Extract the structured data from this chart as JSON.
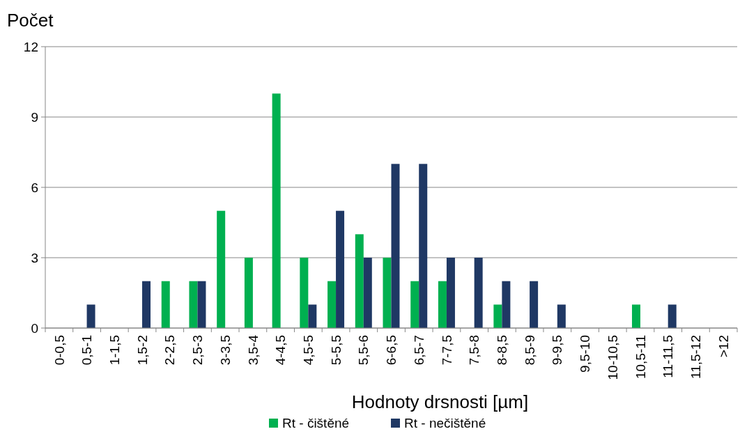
{
  "chart_data": {
    "type": "bar",
    "ylabel": "Počet",
    "xlabel": "Hodnoty drsnosti [µm]",
    "categories": [
      "0-0,5",
      "0,5-1",
      "1-1,5",
      "1,5-2",
      "2-2,5",
      "2,5-3",
      "3-3,5",
      "3,5-4",
      "4-4,5",
      "4,5-5",
      "5-5,5",
      "5,5-6",
      "6-6,5",
      "6,5-7",
      "7-7,5",
      "7,5-8",
      "8-8,5",
      "8,5-9",
      "9-9,5",
      "9,5-10",
      "10-10,5",
      "10,5-11",
      "11-11,5",
      "11,5-12",
      ">12"
    ],
    "series": [
      {
        "name": "Rt - čištěné",
        "color": "#00b050",
        "values": [
          0,
          0,
          0,
          0,
          2,
          2,
          5,
          3,
          10,
          3,
          2,
          4,
          3,
          2,
          2,
          0,
          1,
          0,
          0,
          0,
          0,
          1,
          0,
          0,
          0
        ]
      },
      {
        "name": "Rt - nečištěné",
        "color": "#1f3864",
        "values": [
          0,
          1,
          0,
          2,
          0,
          2,
          0,
          0,
          0,
          1,
          5,
          3,
          7,
          7,
          3,
          3,
          2,
          2,
          1,
          0,
          0,
          0,
          1,
          0,
          0
        ]
      }
    ],
    "ylim": [
      0,
      12
    ],
    "yticks": [
      0,
      3,
      6,
      9,
      12
    ],
    "grid": "y",
    "legend": "bottom"
  }
}
